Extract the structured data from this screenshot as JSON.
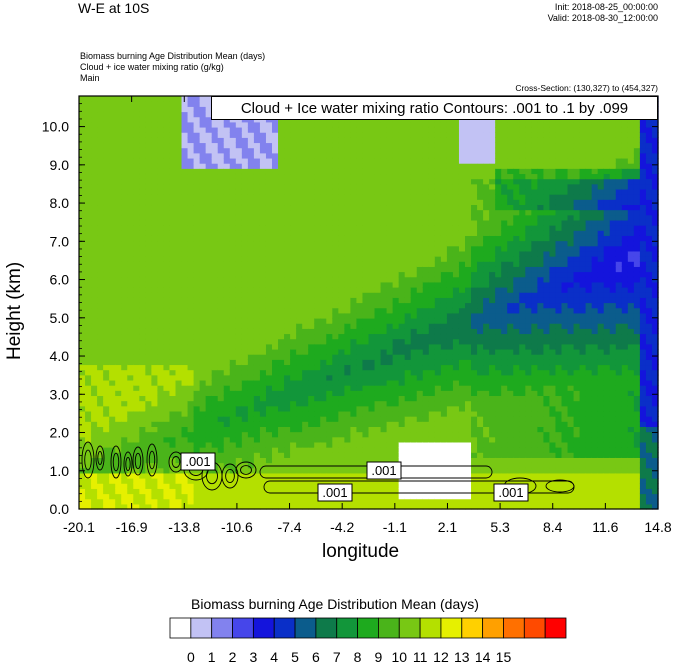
{
  "header": {
    "title": "W-E at 10S",
    "init": "Init: 2018-08-25_00:00:00",
    "valid": "Valid: 2018-08-30_12:00:00",
    "subtitle_lines": [
      "Biomass burning Age Distribution Mean   (days)",
      "Cloud + ice water mixing ratio   (g/kg)",
      "Main"
    ],
    "cross_section": "Cross-Section: (130,327) to (454,327)",
    "contour_info": "Cloud + Ice water mixing ratio Contours: .001 to .1 by .099"
  },
  "chart_data": {
    "type": "heatmap",
    "xlabel": "longitude",
    "ylabel": "Height (km)",
    "x_ticks": [
      "-20.1",
      "-16.9",
      "-13.8",
      "-10.6",
      "-7.4",
      "-4.2",
      "-1.1",
      "2.1",
      "5.3",
      "8.4",
      "11.6",
      "14.8"
    ],
    "y_ticks": [
      "0.0",
      "1.0",
      "2.0",
      "3.0",
      "4.0",
      "5.0",
      "6.0",
      "7.0",
      "8.0",
      "9.0",
      "10.0"
    ],
    "xlim": [
      -20.1,
      14.8
    ],
    "ylim": [
      0,
      10.8
    ],
    "contour_labels": [
      ".001",
      ".001",
      ".001",
      ".001"
    ],
    "colorbar": {
      "title": "Biomass burning Age Distribution Mean  (days)",
      "labels": [
        "0",
        "1",
        "2",
        "3",
        "4",
        "5",
        "6",
        "7",
        "8",
        "9",
        "10",
        "11",
        "12",
        "13",
        "14",
        "15"
      ],
      "colors": [
        "#ffffff",
        "#c2c2f4",
        "#8282ee",
        "#4646ea",
        "#1414dc",
        "#0a2fc8",
        "#0b5c8c",
        "#0e7a4a",
        "#12963a",
        "#1eaa1e",
        "#4ab41a",
        "#78c814",
        "#b4e000",
        "#e6f000",
        "#ffd000",
        "#ffa000",
        "#ff7000",
        "#ff4a00",
        "#ff0000"
      ]
    }
  }
}
